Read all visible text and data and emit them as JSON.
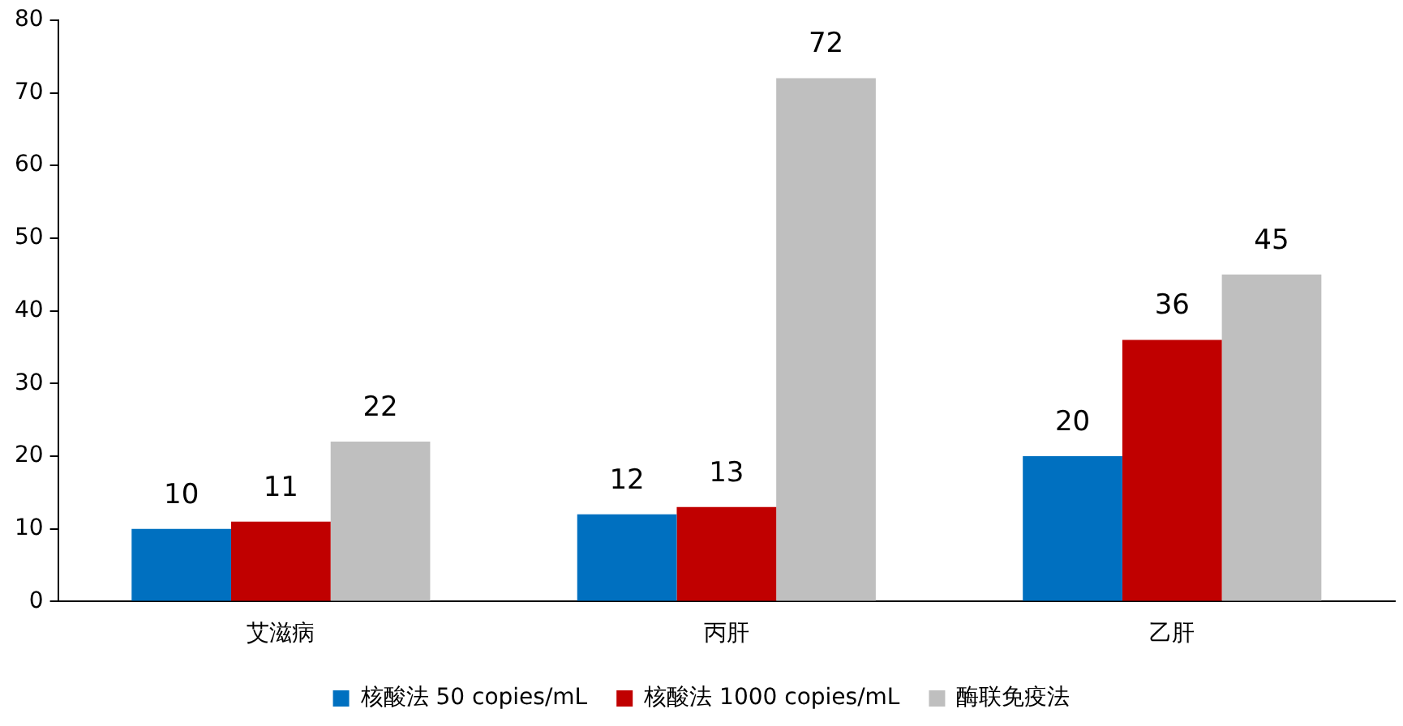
{
  "chart_data": {
    "type": "bar",
    "categories": [
      "艾滋病",
      "丙肝",
      "乙肝"
    ],
    "series": [
      {
        "name": "核酸法 50 copies/mL",
        "color": "#0070c0",
        "values": [
          10,
          12,
          20
        ]
      },
      {
        "name": "核酸法 1000 copies/mL",
        "color": "#c00000",
        "values": [
          11,
          13,
          36
        ]
      },
      {
        "name": "酶联免疫法",
        "color": "#bfbfbf",
        "values": [
          22,
          72,
          45
        ]
      }
    ],
    "ylim": [
      0,
      80
    ],
    "yticks": [
      0,
      10,
      20,
      30,
      40,
      50,
      60,
      70,
      80
    ],
    "grid": false,
    "legend": "bottom",
    "data_labels": true
  }
}
